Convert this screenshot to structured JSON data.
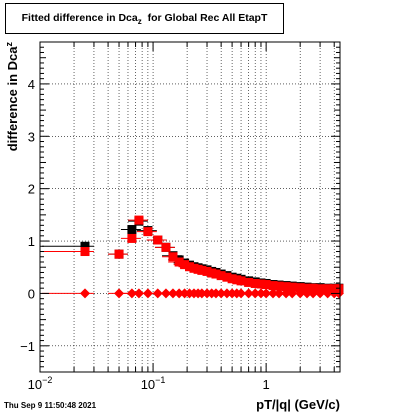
{
  "title": {
    "main": "Fitted difference in Dca",
    "sub": "z",
    "suffix": "for Global Rec All EtapT"
  },
  "timestamp": "Thu Sep  9 11:50:48 2021",
  "chart_data": {
    "type": "scatter",
    "xlabel": "pT/|q| (GeV/c)",
    "ylabel": "difference in Dca",
    "ylabel_sub": "z",
    "x_scale": "log",
    "xlim": [
      0.01,
      4.5
    ],
    "ylim": [
      -1.5,
      4.8
    ],
    "x_tick_labels": [
      {
        "value": 0.01,
        "base": "10",
        "exp": "−2"
      },
      {
        "value": 0.1,
        "base": "10",
        "exp": "−1"
      },
      {
        "value": 1,
        "base": "1",
        "exp": ""
      }
    ],
    "y_ticks": [
      -1,
      0,
      1,
      2,
      3,
      4
    ],
    "grid": true,
    "colors": {
      "black_series": "#000000",
      "red_series": "#ff0000"
    },
    "series": [
      {
        "marker": "square",
        "color": "#000000",
        "x": [
          0.025,
          0.05,
          0.065,
          0.075,
          0.09,
          0.11,
          0.13,
          0.15,
          0.17,
          0.19,
          0.21,
          0.23,
          0.25,
          0.27,
          0.3,
          0.33,
          0.36,
          0.4,
          0.45,
          0.5,
          0.55,
          0.6,
          0.7,
          0.8,
          0.9,
          1.0,
          1.15,
          1.3,
          1.5,
          1.7,
          2.0,
          2.3,
          2.6,
          3.0,
          3.5,
          4.0,
          4.4
        ],
        "y": [
          0.9,
          0.75,
          1.22,
          1.38,
          1.2,
          1.02,
          0.88,
          0.72,
          0.64,
          0.58,
          0.54,
          0.51,
          0.49,
          0.47,
          0.45,
          0.42,
          0.4,
          0.37,
          0.34,
          0.31,
          0.29,
          0.27,
          0.24,
          0.22,
          0.2,
          0.19,
          0.17,
          0.16,
          0.15,
          0.14,
          0.13,
          0.12,
          0.11,
          0.11,
          0.1,
          0.1,
          0.1
        ]
      },
      {
        "marker": "square",
        "color": "#ff0000",
        "x": [
          0.025,
          0.05,
          0.065,
          0.075,
          0.09,
          0.11,
          0.13,
          0.15,
          0.17,
          0.19,
          0.21,
          0.23,
          0.25,
          0.27,
          0.3,
          0.33,
          0.36,
          0.4,
          0.45,
          0.5,
          0.55,
          0.6,
          0.7,
          0.8,
          0.9,
          1.0,
          1.15,
          1.3,
          1.5,
          1.7,
          2.0,
          2.3,
          2.6,
          3.0,
          3.5,
          4.0,
          4.4
        ],
        "y": [
          0.8,
          0.75,
          1.05,
          1.4,
          1.18,
          1.02,
          0.88,
          0.7,
          0.6,
          0.55,
          0.51,
          0.48,
          0.46,
          0.44,
          0.42,
          0.39,
          0.37,
          0.34,
          0.31,
          0.28,
          0.26,
          0.24,
          0.21,
          0.19,
          0.18,
          0.17,
          0.15,
          0.14,
          0.13,
          0.12,
          0.11,
          0.1,
          0.1,
          0.09,
          0.09,
          0.09,
          0.09
        ]
      },
      {
        "marker": "diamond",
        "color": "#ff0000",
        "x": [
          0.025,
          0.05,
          0.065,
          0.075,
          0.09,
          0.11,
          0.13,
          0.15,
          0.17,
          0.19,
          0.21,
          0.23,
          0.25,
          0.27,
          0.3,
          0.33,
          0.36,
          0.4,
          0.45,
          0.5,
          0.55,
          0.6,
          0.7,
          0.8,
          0.9,
          1.0,
          1.15,
          1.3,
          1.5,
          1.7,
          2.0,
          2.3,
          2.6,
          3.0,
          3.5,
          4.0,
          4.4
        ],
        "y": [
          0,
          0,
          0,
          0,
          0,
          0,
          0,
          0,
          0,
          0,
          0,
          0,
          0,
          0,
          0,
          0,
          0,
          0,
          0,
          0,
          0,
          0,
          0,
          0,
          0,
          0,
          0,
          0,
          0,
          0,
          0,
          0,
          0,
          0,
          0,
          0,
          0
        ]
      }
    ]
  }
}
